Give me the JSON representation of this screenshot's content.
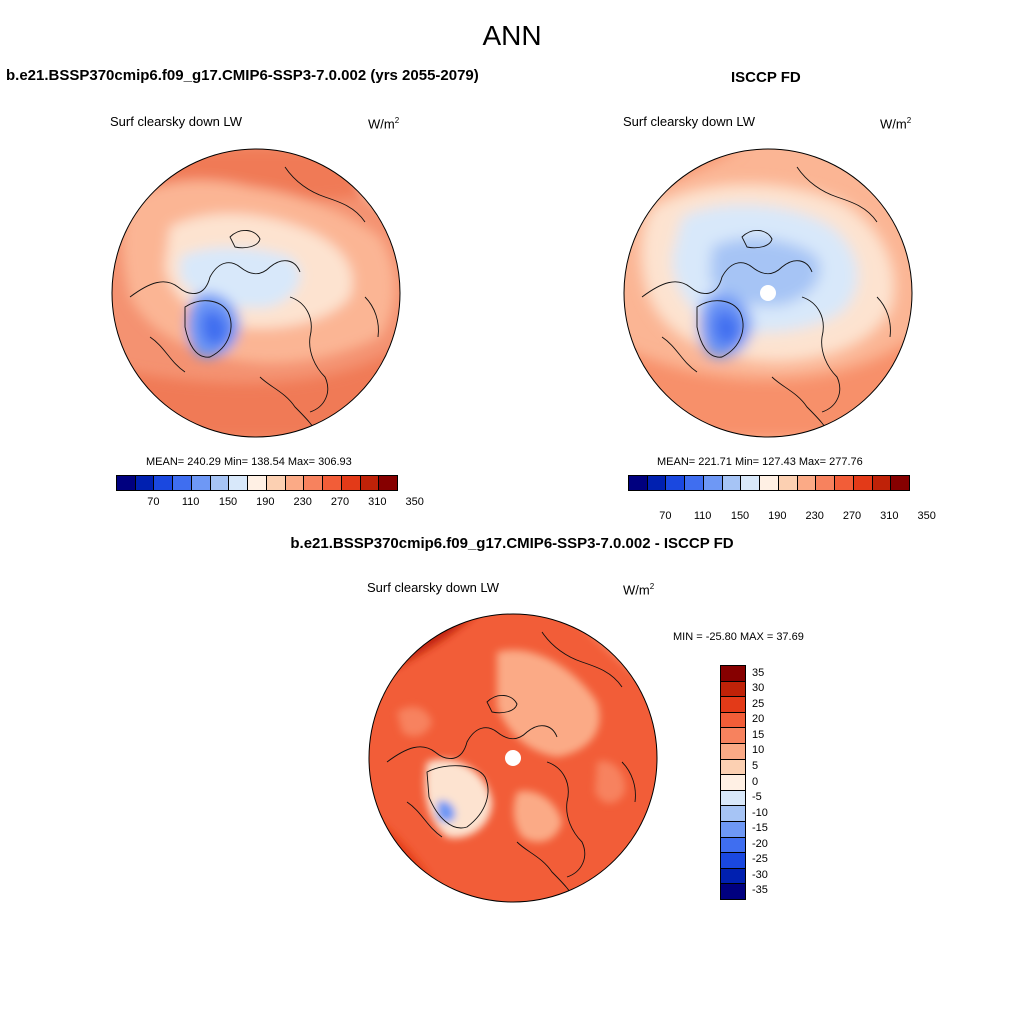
{
  "figure": {
    "title": "ANN",
    "units_base": "W/m",
    "units_exp": "2"
  },
  "panels": [
    {
      "title": "b.e21.BSSP370cmip6.f09_g17.CMIP6-SSP3-7.0.002 (yrs 2055-2079)",
      "variable": "Surf clearsky down LW",
      "stats": "MEAN= 240.29  Min= 138.54  Max= 306.93",
      "mean": 240.29,
      "min": 138.54,
      "max": 306.93
    },
    {
      "title": "ISCCP FD",
      "variable": "Surf clearsky down LW",
      "stats": "MEAN= 221.71  Min= 127.43  Max= 277.76",
      "mean": 221.71,
      "min": 127.43,
      "max": 277.76
    },
    {
      "title": "b.e21.BSSP370cmip6.f09_g17.CMIP6-SSP3-7.0.002 - ISCCP FD",
      "variable": "Surf clearsky down LW",
      "stats": "MIN = -25.80 MAX =  37.69",
      "min": -25.8,
      "max": 37.69
    }
  ],
  "colorbars": {
    "absolute": {
      "labels": [
        "70",
        "110",
        "150",
        "190",
        "230",
        "270",
        "310",
        "350"
      ],
      "colors": [
        "#00007f",
        "#0020b0",
        "#1a48e0",
        "#3f6ef0",
        "#6e98f5",
        "#a6c4f5",
        "#d8e8fa",
        "#fff0e4",
        "#fcd0b2",
        "#fbaa86",
        "#f7825e",
        "#f25d38",
        "#e33a18",
        "#bf2208",
        "#860000"
      ]
    },
    "difference": {
      "labels": [
        "35",
        "30",
        "25",
        "20",
        "15",
        "10",
        "5",
        "0",
        "-5",
        "-10",
        "-15",
        "-20",
        "-25",
        "-30",
        "-35"
      ],
      "colors": [
        "#860000",
        "#bf2208",
        "#e33a18",
        "#f25d38",
        "#f7825e",
        "#fbaa86",
        "#fcd0b2",
        "#fff0e4",
        "#d8e8fa",
        "#a6c4f5",
        "#6e98f5",
        "#3f6ef0",
        "#1a48e0",
        "#0020b0",
        "#00007f"
      ]
    }
  }
}
